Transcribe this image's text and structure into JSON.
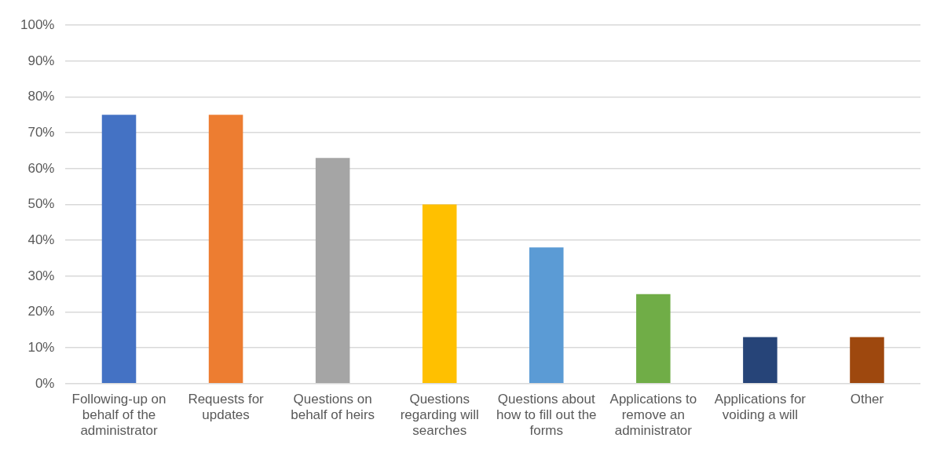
{
  "chart_data": {
    "type": "bar",
    "categories": [
      "Following-up on behalf of the administrator",
      "Requests for updates",
      "Questions on behalf of heirs",
      "Questions regarding will searches",
      "Questions about how to fill out the forms",
      "Applications to remove an administrator",
      "Applications for voiding a will",
      "Other"
    ],
    "values": [
      75,
      75,
      63,
      50,
      38,
      25,
      13,
      13
    ],
    "colors": [
      "#4472c4",
      "#ed7d31",
      "#a5a5a5",
      "#ffc000",
      "#5b9bd5",
      "#70ad47",
      "#264478",
      "#9e480e"
    ],
    "ylim": [
      0,
      100
    ],
    "yticks": [
      {
        "value": 0,
        "label": "0%"
      },
      {
        "value": 10,
        "label": "10%"
      },
      {
        "value": 20,
        "label": "20%"
      },
      {
        "value": 30,
        "label": "30%"
      },
      {
        "value": 40,
        "label": "40%"
      },
      {
        "value": 50,
        "label": "50%"
      },
      {
        "value": 60,
        "label": "60%"
      },
      {
        "value": 70,
        "label": "70%"
      },
      {
        "value": 80,
        "label": "80%"
      },
      {
        "value": 90,
        "label": "90%"
      },
      {
        "value": 100,
        "label": "100%"
      }
    ],
    "grid": "y",
    "legend": false
  }
}
